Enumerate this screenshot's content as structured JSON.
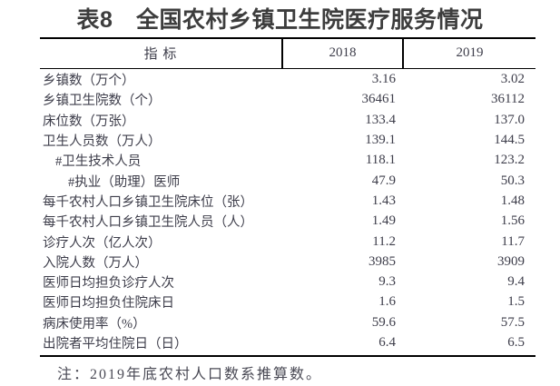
{
  "chart_data": {
    "type": "table",
    "title": "表8　全国农村乡镇卫生院医疗服务情况",
    "columns": [
      "指 标",
      "2018",
      "2019"
    ],
    "rows": [
      {
        "label": "乡镇数（万个）",
        "indent": 0,
        "v2018": "3.16",
        "v2019": "3.02"
      },
      {
        "label": "乡镇卫生院数（个）",
        "indent": 0,
        "v2018": "36461",
        "v2019": "36112"
      },
      {
        "label": "床位数（万张）",
        "indent": 0,
        "v2018": "133.4",
        "v2019": "137.0"
      },
      {
        "label": "卫生人员数（万人）",
        "indent": 0,
        "v2018": "139.1",
        "v2019": "144.5"
      },
      {
        "label": "#卫生技术人员",
        "indent": 1,
        "v2018": "118.1",
        "v2019": "123.2"
      },
      {
        "label": "#执业（助理）医师",
        "indent": 2,
        "v2018": "47.9",
        "v2019": "50.3"
      },
      {
        "label": "每千农村人口乡镇卫生院床位（张）",
        "indent": 0,
        "v2018": "1.43",
        "v2019": "1.48"
      },
      {
        "label": "每千农村人口乡镇卫生院人员（人）",
        "indent": 0,
        "v2018": "1.49",
        "v2019": "1.56"
      },
      {
        "label": "诊疗人次（亿人次）",
        "indent": 0,
        "v2018": "11.2",
        "v2019": "11.7"
      },
      {
        "label": "入院人数（万人）",
        "indent": 0,
        "v2018": "3985",
        "v2019": "3909"
      },
      {
        "label": "医师日均担负诊疗人次",
        "indent": 0,
        "v2018": "9.3",
        "v2019": "9.4"
      },
      {
        "label": "医师日均担负住院床日",
        "indent": 0,
        "v2018": "1.6",
        "v2019": "1.5"
      },
      {
        "label": "病床使用率（%）",
        "indent": 0,
        "v2018": "59.6",
        "v2019": "57.5"
      },
      {
        "label": "出院者平均住院日（日）",
        "indent": 0,
        "v2018": "6.4",
        "v2019": "6.5"
      }
    ],
    "note": "注：2019年底农村人口数系推算数。"
  },
  "colors": {
    "background": "#ffffff",
    "title_text": "#3d3d3d",
    "table_text": "#3d3d4a",
    "note_text": "#4a4a55",
    "rule": "#000000"
  }
}
